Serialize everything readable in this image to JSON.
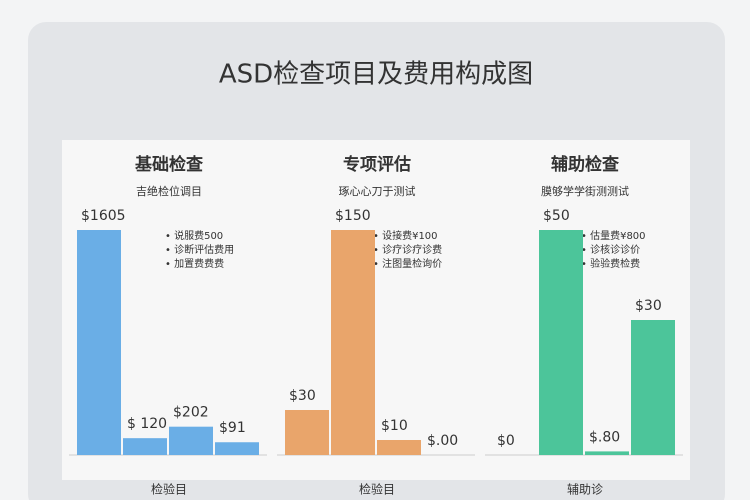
{
  "title": "ASD检查项目及费用构成图",
  "chart_data": [
    {
      "type": "bar",
      "title": "基础检查",
      "subtitle": "吉绝检位调目",
      "color": "#6aaee6",
      "notes": [
        "• 说服费500",
        "• 诊断评估费用",
        "• 加置费费费"
      ],
      "values": [
        1605,
        120,
        202,
        91
      ],
      "value_labels": [
        "$1605",
        "$ 120",
        "$202",
        "$91"
      ],
      "x_label": "检验目"
    },
    {
      "type": "bar",
      "title": "专项评估",
      "subtitle": "琢心心刀于测试",
      "color": "#e9a56b",
      "notes": [
        "• 设接费¥100",
        "• 诊疗诊疗诊费",
        "• 注图量检询价"
      ],
      "values": [
        30,
        150,
        10,
        0
      ],
      "value_labels": [
        "$30",
        "$150",
        "$10",
        "$.00"
      ],
      "x_label": "检验目"
    },
    {
      "type": "bar",
      "title": "辅助检查",
      "subtitle": "膜够学学街测测试",
      "color": "#4cc59a",
      "notes": [
        "• 估量费¥800",
        "• 诊核诊诊价",
        "• 验验费检费"
      ],
      "values": [
        0,
        50,
        0.8,
        30
      ],
      "value_labels": [
        "$0",
        "$50",
        "$.80",
        "$30"
      ],
      "x_label": "辅助诊"
    }
  ]
}
